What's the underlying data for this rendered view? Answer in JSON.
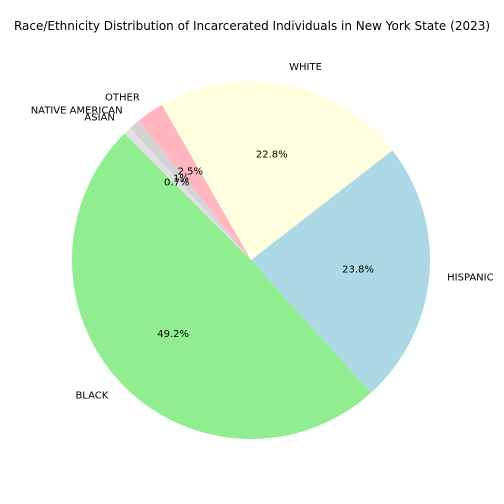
{
  "chart_data": {
    "type": "pie",
    "title": "Race/Ethnicity Distribution of Incarcerated Individuals in New York State (2023)",
    "start_angle_deg": 135,
    "direction": "counterclockwise",
    "slices": [
      {
        "label": "BLACK",
        "value": 49.2,
        "pct_label": "49.2%",
        "color": "#90ee90"
      },
      {
        "label": "HISPANIC",
        "value": 23.8,
        "pct_label": "23.8%",
        "color": "#add8e6"
      },
      {
        "label": "WHITE",
        "value": 22.8,
        "pct_label": "22.8%",
        "color": "#ffffe0"
      },
      {
        "label": "OTHER",
        "value": 2.5,
        "pct_label": "2.5%",
        "color": "#ffb6c1"
      },
      {
        "label": "NATIVE AMERICAN",
        "value": 1.0,
        "pct_label": "1%",
        "color": "#d3d3d3"
      },
      {
        "label": "ASIAN",
        "value": 0.7,
        "pct_label": "0.7%",
        "color": "#e0e0e0"
      }
    ]
  }
}
